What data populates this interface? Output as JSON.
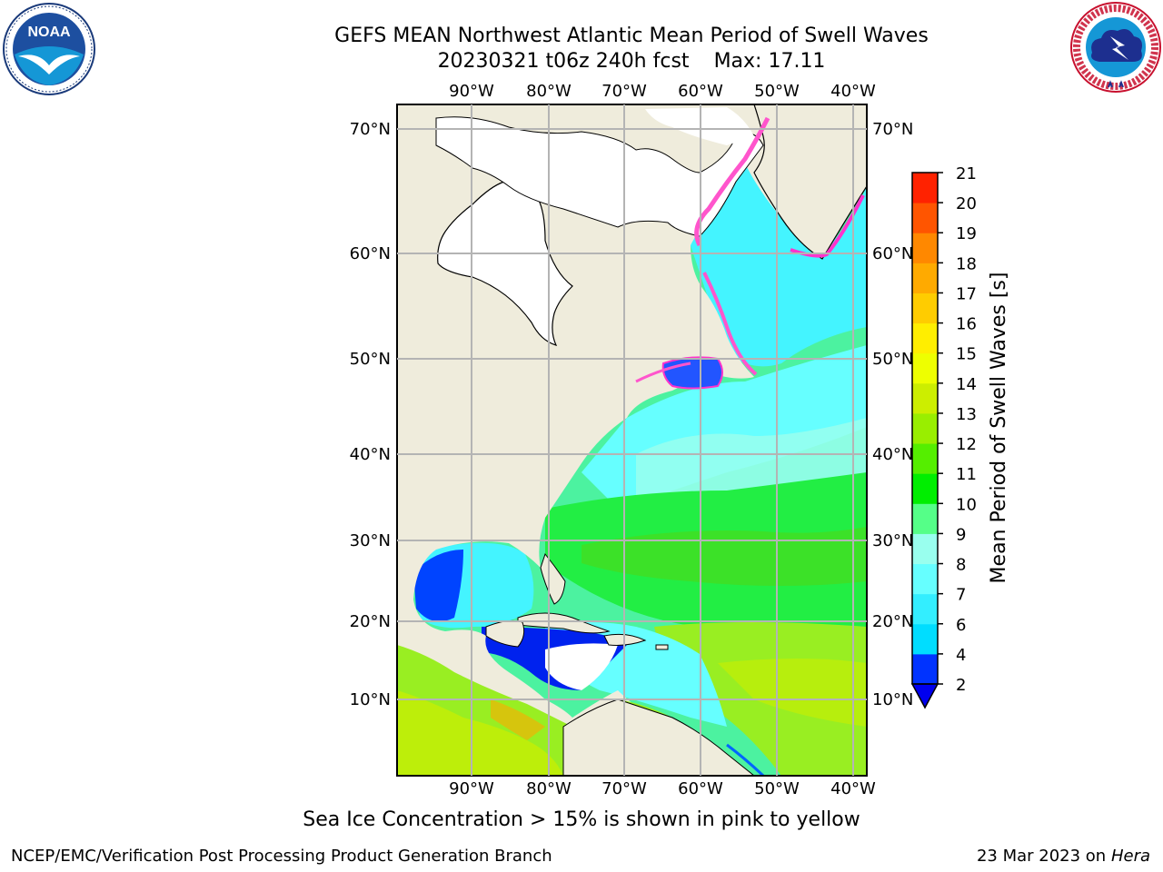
{
  "header": {
    "title": "GEFS MEAN Northwest Atlantic Mean Period of Swell Waves",
    "run": "20230321 t06z 240h fcst",
    "max_label": "Max: 17.11"
  },
  "logos": {
    "left": {
      "name": "NOAA",
      "text": "NOAA"
    },
    "right": {
      "name": "National Weather Service",
      "ring_text": "NATIONAL WEATHER SERVICE"
    }
  },
  "map": {
    "lon_ticks": [
      "90°W",
      "80°W",
      "70°W",
      "60°W",
      "50°W",
      "40°W"
    ],
    "lat_ticks": [
      "70°N",
      "60°N",
      "50°N",
      "40°N",
      "30°N",
      "20°N",
      "10°N"
    ],
    "colors": {
      "land": "#efecdc",
      "ice_free": "#ffffff",
      "grid": "#b4b4b4",
      "coast": "#000000"
    }
  },
  "colorbar": {
    "label": "Mean Period of Swell Waves [s]",
    "ticks": [
      "2",
      "4",
      "6",
      "7",
      "8",
      "9",
      "10",
      "11",
      "12",
      "13",
      "14",
      "15",
      "16",
      "17",
      "18",
      "19",
      "20",
      "21"
    ],
    "colors": [
      "#0033ff",
      "#00ddff",
      "#33eeff",
      "#66ffff",
      "#99ffee",
      "#55ff88",
      "#00ee00",
      "#55ee00",
      "#99ee00",
      "#ccee00",
      "#eeff00",
      "#ffee00",
      "#ffcc00",
      "#ffaa00",
      "#ff8800",
      "#ff5500",
      "#ff2200"
    ],
    "under_color": "#0000ee"
  },
  "footer": {
    "note": "Sea Ice Concentration > 15% is shown in pink to yellow",
    "left": "NCEP/EMC/Verification Post Processing Product Generation Branch",
    "date": "23 Mar 2023 on",
    "machine": "Hera"
  }
}
